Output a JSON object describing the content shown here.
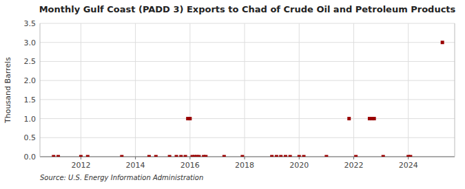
{
  "chart_data": {
    "type": "scatter",
    "title": "Monthly Gulf Coast (PADD 3) Exports to Chad of Crude Oil and Petroleum Products",
    "y_label": "Thousand Barrels",
    "annotations": [
      "Source: U.S. Energy Information Administration"
    ],
    "color": "#990000",
    "marker": "square",
    "grid": true,
    "xlim": [
      2010.5,
      2025.7
    ],
    "xticks": [
      2012,
      2014,
      2016,
      2018,
      2020,
      2022,
      2024
    ],
    "ylim": [
      0,
      3.5
    ],
    "yticks": [
      {
        "value": 0.0,
        "label": "0.0"
      },
      0.5,
      {
        "value": 1.0,
        "label": "1.0"
      },
      1.5,
      {
        "value": 2.0,
        "label": "2.0"
      },
      2.5,
      {
        "value": 3.0,
        "label": "3.0"
      },
      3.5
    ],
    "x": [
      2011.0,
      2011.17,
      2012.0,
      2012.25,
      2013.5,
      2014.5,
      2014.75,
      2015.25,
      2015.5,
      2015.67,
      2015.83,
      2015.92,
      2016.0,
      2016.08,
      2016.17,
      2016.25,
      2016.33,
      2016.5,
      2016.58,
      2017.25,
      2017.92,
      2019.0,
      2019.17,
      2019.33,
      2019.5,
      2019.67,
      2020.0,
      2020.17,
      2021.0,
      2021.83,
      2022.08,
      2022.58,
      2022.67,
      2022.75,
      2023.08,
      2024.0,
      2024.08,
      2025.25
    ],
    "values": [
      0.0,
      0.0,
      0.0,
      0.0,
      0.0,
      0.0,
      0.0,
      0.0,
      0.0,
      0.0,
      0.0,
      1.0,
      1.0,
      0.0,
      0.0,
      0.0,
      0.0,
      0.0,
      0.0,
      0.0,
      0.0,
      0.0,
      0.0,
      0.0,
      0.0,
      0.0,
      0.0,
      0.0,
      0.0,
      1.0,
      0.0,
      1.0,
      1.0,
      1.0,
      0.0,
      0.0,
      0.0,
      3.0
    ]
  }
}
